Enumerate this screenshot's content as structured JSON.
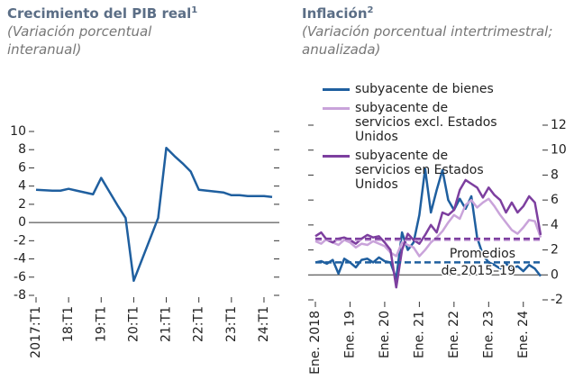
{
  "chart_data": [
    {
      "type": "line",
      "title": "Crecimiento del PIB real",
      "title_note": "1",
      "subtitle": "(Variación porcentual interanual)",
      "categories": [
        "2017:T1",
        null,
        null,
        null,
        "18:T1",
        null,
        null,
        null,
        "19:T1",
        null,
        null,
        null,
        "20:T1",
        null,
        null,
        null,
        "21:T1",
        null,
        null,
        null,
        "22:T1",
        null,
        null,
        null,
        "23:T1",
        null,
        null,
        null,
        "24:T1",
        null
      ],
      "series": [
        {
          "color": "#1f5f9f",
          "values": [
            3.6,
            3.55,
            3.5,
            3.5,
            3.7,
            3.5,
            3.3,
            3.1,
            4.9,
            3.4,
            1.9,
            0.5,
            -6.4,
            -4.1,
            -1.8,
            0.5,
            8.2,
            7.3,
            6.5,
            5.6,
            3.6,
            3.5,
            3.4,
            3.3,
            3.0,
            3.0,
            2.9,
            2.9,
            2.9,
            2.8
          ]
        }
      ],
      "ylim": [
        -8,
        10
      ],
      "yticks": [
        -8,
        -6,
        -4,
        -2,
        0,
        2,
        4,
        6,
        8,
        10
      ],
      "y_axis_side": "left"
    },
    {
      "type": "line",
      "title": "Inflación",
      "title_note": "2",
      "subtitle": "(Variación porcentual intertrimestral; anualizada)",
      "categories": [
        "Ene. 2018",
        null,
        null,
        null,
        null,
        null,
        "Ene. 19",
        null,
        null,
        null,
        null,
        null,
        "Ene. 20",
        null,
        null,
        null,
        null,
        null,
        "Ene. 21",
        null,
        null,
        null,
        null,
        null,
        "Ene. 22",
        null,
        null,
        null,
        null,
        null,
        "Ene. 23",
        null,
        null,
        null,
        null,
        null,
        "Ene. 24",
        null,
        null,
        null
      ],
      "series": [
        {
          "name": "subyacente de bienes",
          "color": "#1f5f9f",
          "values": [
            1.0,
            1.1,
            0.9,
            1.2,
            0.1,
            1.3,
            1.0,
            0.6,
            1.2,
            1.3,
            1.0,
            1.4,
            1.1,
            1.0,
            -0.3,
            3.4,
            2.0,
            2.6,
            4.8,
            8.5,
            5.0,
            6.8,
            8.4,
            6.0,
            5.2,
            6.1,
            5.3,
            6.3,
            3.0,
            1.6,
            1.0,
            0.8,
            0.5,
            0.9,
            0.5,
            0.7,
            0.3,
            0.8,
            0.5,
            -0.1
          ]
        },
        {
          "name": "subyacente de servicios excl. Estados Unidos",
          "color": "#c9a3da",
          "values": [
            2.7,
            2.5,
            2.9,
            2.6,
            2.4,
            2.8,
            2.6,
            2.2,
            2.5,
            2.4,
            2.7,
            2.5,
            2.3,
            1.8,
            1.5,
            2.6,
            2.4,
            2.2,
            1.5,
            2.0,
            2.6,
            3.0,
            3.5,
            4.2,
            4.8,
            4.5,
            5.6,
            6.0,
            5.4,
            5.8,
            6.1,
            5.5,
            4.8,
            4.2,
            3.6,
            3.3,
            3.8,
            4.4,
            4.3,
            3.0
          ]
        },
        {
          "name": "subyacente de servicios en Estados Unidos",
          "color": "#7d3f9f",
          "values": [
            3.1,
            3.4,
            2.8,
            2.6,
            2.9,
            3.0,
            2.8,
            2.5,
            2.9,
            3.2,
            3.0,
            3.1,
            2.6,
            2.0,
            -1.0,
            2.0,
            3.3,
            2.8,
            2.5,
            3.2,
            4.0,
            3.4,
            5.0,
            4.8,
            5.2,
            6.8,
            7.6,
            7.3,
            7.0,
            6.2,
            7.0,
            6.4,
            6.0,
            5.0,
            5.8,
            5.0,
            5.5,
            6.3,
            5.8,
            3.2
          ]
        }
      ],
      "reference_lines": [
        {
          "value": 1.0,
          "color": "#1f5f9f"
        },
        {
          "value": 2.8,
          "color": "#c9a3da"
        },
        {
          "value": 2.9,
          "color": "#7d3f9f"
        }
      ],
      "annotation": [
        "Promedios",
        "de 2015–19"
      ],
      "ylim": [
        -2,
        12
      ],
      "yticks": [
        -2,
        0,
        2,
        4,
        6,
        8,
        10,
        12
      ],
      "y_axis_side": "right"
    }
  ]
}
